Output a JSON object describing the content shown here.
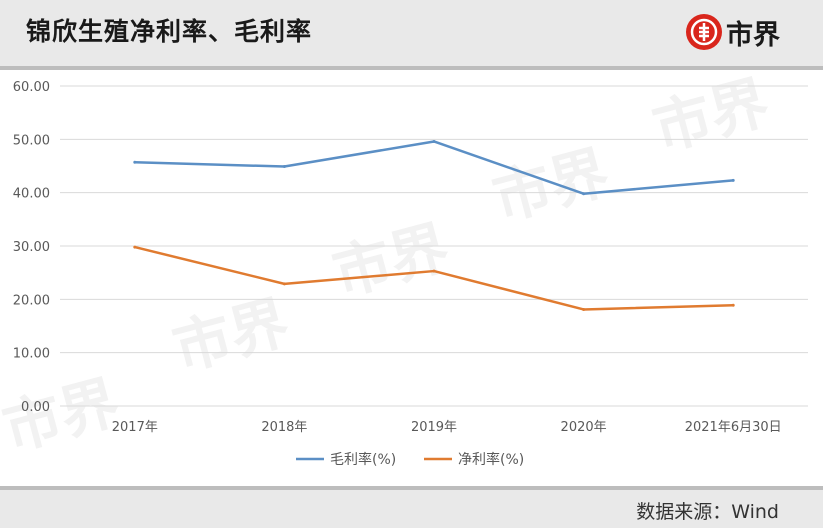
{
  "header": {
    "title": "锦欣生殖净利率、毛利率",
    "logo_text": "市界"
  },
  "footer": {
    "source": "数据来源：Wind"
  },
  "colors": {
    "gross": "#5b8fc5",
    "net": "#e07b30",
    "accent": "#d9261c"
  },
  "chart_data": {
    "type": "line",
    "categories": [
      "2017年",
      "2018年",
      "2019年",
      "2020年",
      "2021年6月30日"
    ],
    "series": [
      {
        "name": "毛利率(%)",
        "values": [
          45.7,
          44.9,
          49.6,
          39.8,
          42.3
        ]
      },
      {
        "name": "净利率(%)",
        "values": [
          29.8,
          22.9,
          25.3,
          18.1,
          18.9
        ]
      }
    ],
    "yticks": [
      "0.00",
      "10.00",
      "20.00",
      "30.00",
      "40.00",
      "50.00",
      "60.00"
    ],
    "ylim": [
      0,
      60
    ],
    "grid": true,
    "legend": "bottom"
  }
}
